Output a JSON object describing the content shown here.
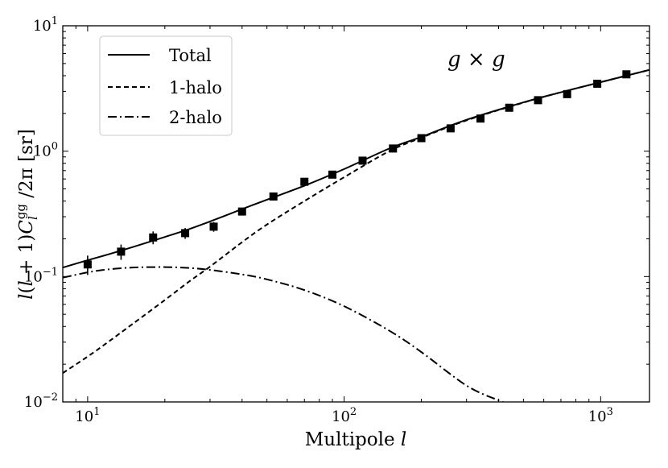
{
  "chart_data": {
    "type": "line",
    "title": "",
    "xlabel": "Multipole l",
    "ylabel": "l(l + 1)C_l^gg / 2π [sr]",
    "xscale": "log",
    "yscale": "log",
    "xlim": [
      8,
      1550
    ],
    "ylim": [
      0.01,
      10
    ],
    "x_ticks": [
      {
        "value": 10,
        "base": "10",
        "exp": "1"
      },
      {
        "value": 100,
        "base": "10",
        "exp": "2"
      },
      {
        "value": 1000,
        "base": "10",
        "exp": "3"
      }
    ],
    "y_ticks": [
      {
        "value": 0.01,
        "base": "10",
        "exp": "−2"
      },
      {
        "value": 0.1,
        "base": "10",
        "exp": "−1"
      },
      {
        "value": 1,
        "base": "10",
        "exp": "0"
      },
      {
        "value": 10,
        "base": "10",
        "exp": "1"
      }
    ],
    "annotation": "g × g",
    "legend": {
      "position": "upper-left"
    },
    "series": [
      {
        "name": "Total",
        "style": "solid",
        "x": [
          8,
          10,
          12,
          15,
          20,
          25,
          30,
          40,
          50,
          70,
          100,
          150,
          200,
          300,
          500,
          700,
          1000,
          1550
        ],
        "y": [
          0.118,
          0.135,
          0.15,
          0.172,
          0.207,
          0.24,
          0.275,
          0.345,
          0.41,
          0.53,
          0.72,
          1.05,
          1.3,
          1.78,
          2.45,
          2.95,
          3.55,
          4.45
        ]
      },
      {
        "name": "1-halo",
        "style": "dashed",
        "x": [
          8,
          10,
          12,
          15,
          20,
          25,
          30,
          40,
          50,
          70,
          100,
          150,
          200,
          300,
          500,
          700,
          1000,
          1550
        ],
        "y": [
          0.017,
          0.023,
          0.03,
          0.042,
          0.065,
          0.092,
          0.12,
          0.188,
          0.26,
          0.4,
          0.62,
          1.0,
          1.28,
          1.76,
          2.44,
          2.95,
          3.55,
          4.45
        ]
      },
      {
        "name": "2-halo",
        "style": "dashdot",
        "x": [
          8,
          10,
          12,
          15,
          20,
          25,
          30,
          40,
          50,
          70,
          100,
          150,
          200,
          300,
          400,
          450
        ],
        "y": [
          0.098,
          0.108,
          0.114,
          0.118,
          0.119,
          0.117,
          0.113,
          0.104,
          0.095,
          0.078,
          0.058,
          0.037,
          0.025,
          0.0135,
          0.0103,
          0.0095
        ]
      }
    ],
    "points": {
      "name": "data",
      "x": [
        10,
        13.5,
        18,
        24,
        31,
        40,
        53,
        70,
        90,
        118,
        155,
        200,
        260,
        340,
        440,
        570,
        740,
        970,
        1260
      ],
      "y": [
        0.125,
        0.158,
        0.205,
        0.222,
        0.25,
        0.33,
        0.435,
        0.57,
        0.65,
        0.84,
        1.05,
        1.27,
        1.52,
        1.82,
        2.22,
        2.55,
        2.85,
        3.45,
        4.1
      ],
      "err": [
        0.022,
        0.022,
        0.024,
        0.022,
        0.022,
        0.022,
        0.022,
        0.025,
        0.03,
        0.035,
        0.04,
        0.05,
        0.055,
        0.06,
        0.07,
        0.08,
        0.08,
        0.09,
        0.1
      ]
    }
  }
}
